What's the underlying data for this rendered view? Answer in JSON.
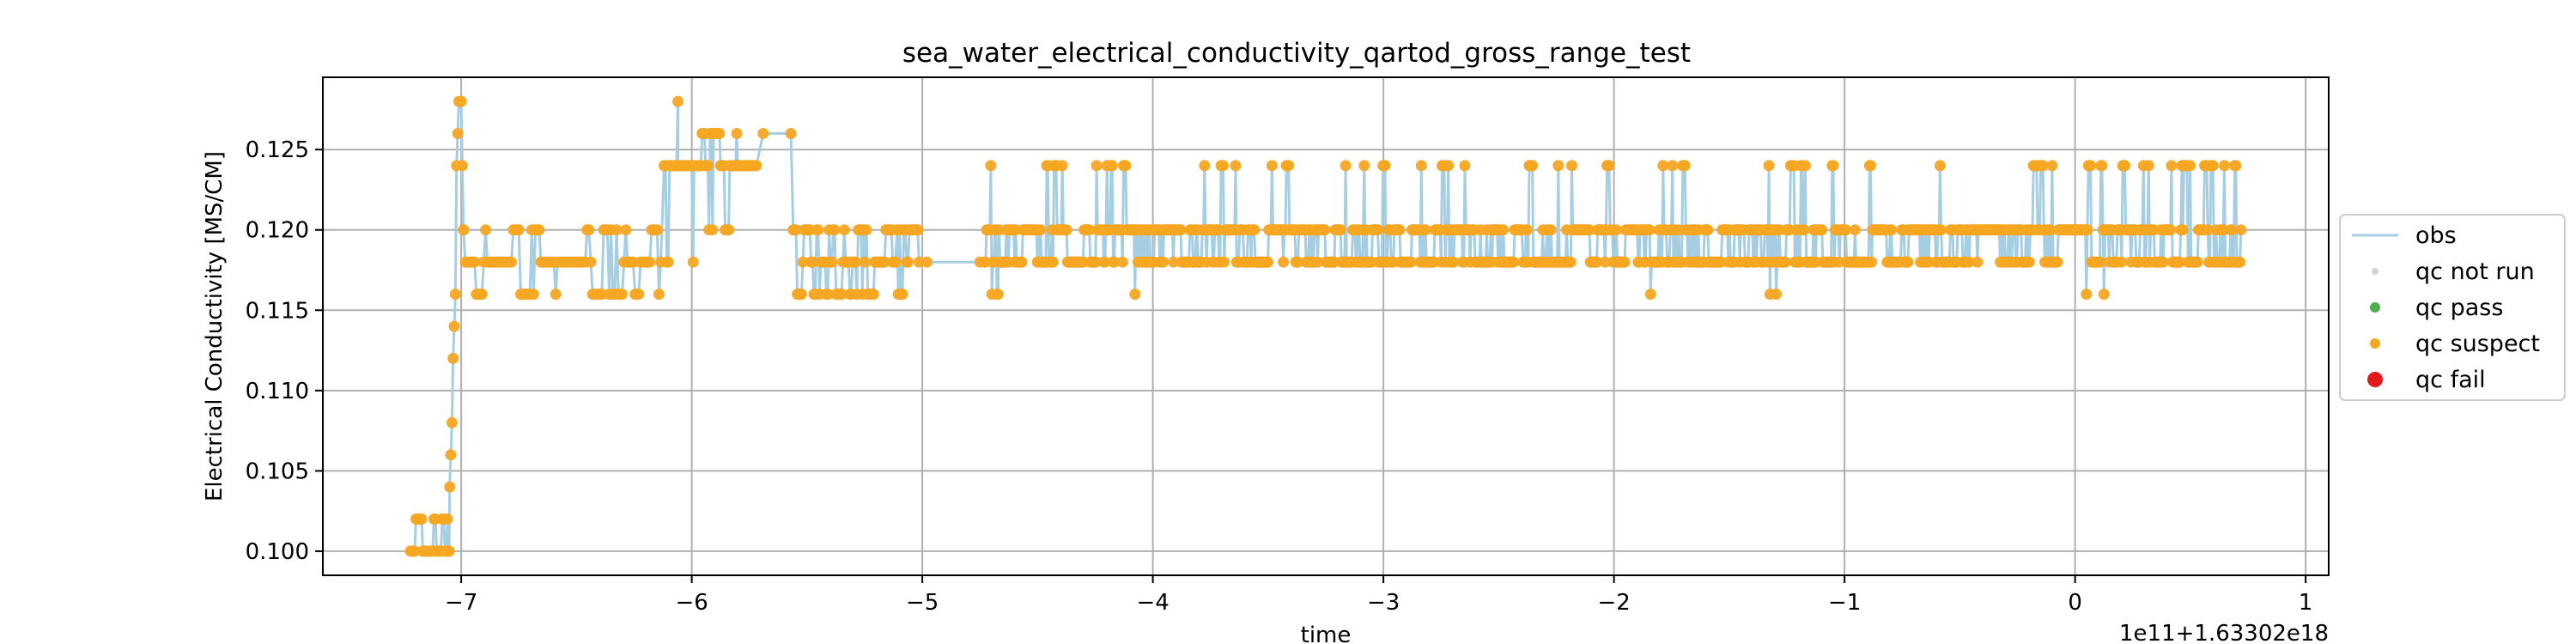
{
  "chart_data": {
    "type": "scatter",
    "title": "sea_water_electrical_conductivity_qartod_gross_range_test",
    "xlabel": "time",
    "ylabel": "Electrical Conductivity [MS/CM]",
    "offset_text": "1e11+1.63302e18",
    "xlim": [
      -7.6,
      1.1
    ],
    "ylim": [
      0.0985,
      0.1295
    ],
    "x_ticks": [
      -7,
      -6,
      -5,
      -4,
      -3,
      -2,
      -1,
      0,
      1
    ],
    "x_tick_labels": [
      "−7",
      "−6",
      "−5",
      "−4",
      "−3",
      "−2",
      "−1",
      "0",
      "1"
    ],
    "y_ticks": [
      0.1,
      0.105,
      0.11,
      0.115,
      0.12,
      0.125
    ],
    "y_tick_labels": [
      "0.100",
      "0.105",
      "0.110",
      "0.115",
      "0.120",
      "0.125"
    ],
    "grid": true,
    "legend_position": "outside-right",
    "legend": [
      {
        "label": "obs",
        "kind": "line",
        "color": "#a6cee3"
      },
      {
        "label": "qc not run",
        "kind": "dot",
        "color": "#d3d3d3"
      },
      {
        "label": "qc pass",
        "kind": "dot",
        "color": "#4daf4a"
      },
      {
        "label": "qc suspect",
        "kind": "dot",
        "color": "#f5a623"
      },
      {
        "label": "qc fail",
        "kind": "dot",
        "color": "#e31a1c"
      }
    ],
    "colors": {
      "obs": "#a6cee3",
      "suspect": "#f5a623"
    },
    "segments": [
      {
        "x_start": -7.22,
        "x_end": -7.05,
        "levels": [
          0.1,
          0.102
        ],
        "weights": [
          0.75,
          0.25
        ],
        "step": 0.006
      },
      {
        "x_start": -6.99,
        "x_end": -6.13,
        "levels": [
          0.116,
          0.118,
          0.12
        ],
        "weights": [
          0.3,
          0.45,
          0.25
        ],
        "step": 0.008
      },
      {
        "x_start": -6.12,
        "x_end": -5.99,
        "levels": [
          0.118,
          0.12,
          0.124
        ],
        "weights": [
          0.2,
          0.2,
          0.6
        ],
        "step": 0.006
      },
      {
        "x_start": -5.99,
        "x_end": -5.72,
        "levels": [
          0.12,
          0.124,
          0.126
        ],
        "weights": [
          0.1,
          0.45,
          0.45
        ],
        "step": 0.005
      },
      {
        "x_start": -5.56,
        "x_end": -5.01,
        "levels": [
          0.116,
          0.118,
          0.12
        ],
        "weights": [
          0.2,
          0.4,
          0.4
        ],
        "step": 0.006
      },
      {
        "x_start": -4.73,
        "x_end": 0.72,
        "levels": [
          0.116,
          0.118,
          0.12,
          0.124
        ],
        "weights": [
          0.01,
          0.45,
          0.46,
          0.08
        ],
        "step": 0.0045
      }
    ],
    "points": [
      {
        "x": -7.06,
        "y": 0.102
      },
      {
        "x": -7.05,
        "y": 0.104
      },
      {
        "x": -7.045,
        "y": 0.106
      },
      {
        "x": -7.04,
        "y": 0.108
      },
      {
        "x": -7.035,
        "y": 0.112
      },
      {
        "x": -7.03,
        "y": 0.114
      },
      {
        "x": -7.025,
        "y": 0.116
      },
      {
        "x": -7.02,
        "y": 0.124
      },
      {
        "x": -7.015,
        "y": 0.126
      },
      {
        "x": -7.01,
        "y": 0.128
      },
      {
        "x": -7.0,
        "y": 0.128
      },
      {
        "x": -6.995,
        "y": 0.124
      },
      {
        "x": -6.99,
        "y": 0.12
      },
      {
        "x": -5.69,
        "y": 0.126
      },
      {
        "x": -5.57,
        "y": 0.126
      },
      {
        "x": -4.98,
        "y": 0.118
      },
      {
        "x": -4.75,
        "y": 0.118
      },
      {
        "x": -6.06,
        "y": 0.128
      }
    ]
  }
}
